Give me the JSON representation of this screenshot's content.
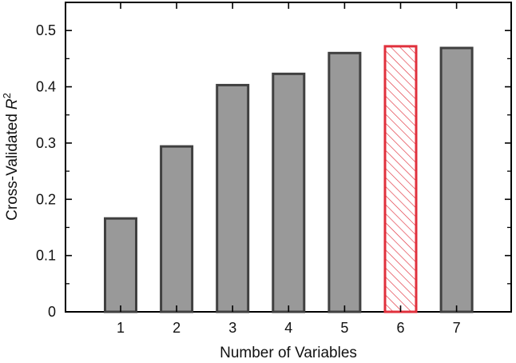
{
  "chart_data": {
    "type": "bar",
    "xlabel": "Number of Variables",
    "ylabel": "Cross-Validated",
    "ylabel_symbol": "R",
    "ylabel_superscript": "2",
    "categories": [
      "1",
      "2",
      "3",
      "4",
      "5",
      "6",
      "7"
    ],
    "values": [
      0.166,
      0.294,
      0.403,
      0.423,
      0.46,
      0.472,
      0.469
    ],
    "highlight_index": 5,
    "ylim": [
      0,
      0.55
    ],
    "yticks": [
      0,
      0.1,
      0.2,
      0.3,
      0.4,
      0.5
    ],
    "ytick_labels": [
      "0",
      "0.1",
      "0.2",
      "0.3",
      "0.4",
      "0.5"
    ],
    "grid": false,
    "colors": {
      "bar_fill": "#999999",
      "bar_stroke": "#404040",
      "highlight_stroke": "#e0303c",
      "highlight_hatch": "#e0303c",
      "frame": "#000000"
    }
  }
}
